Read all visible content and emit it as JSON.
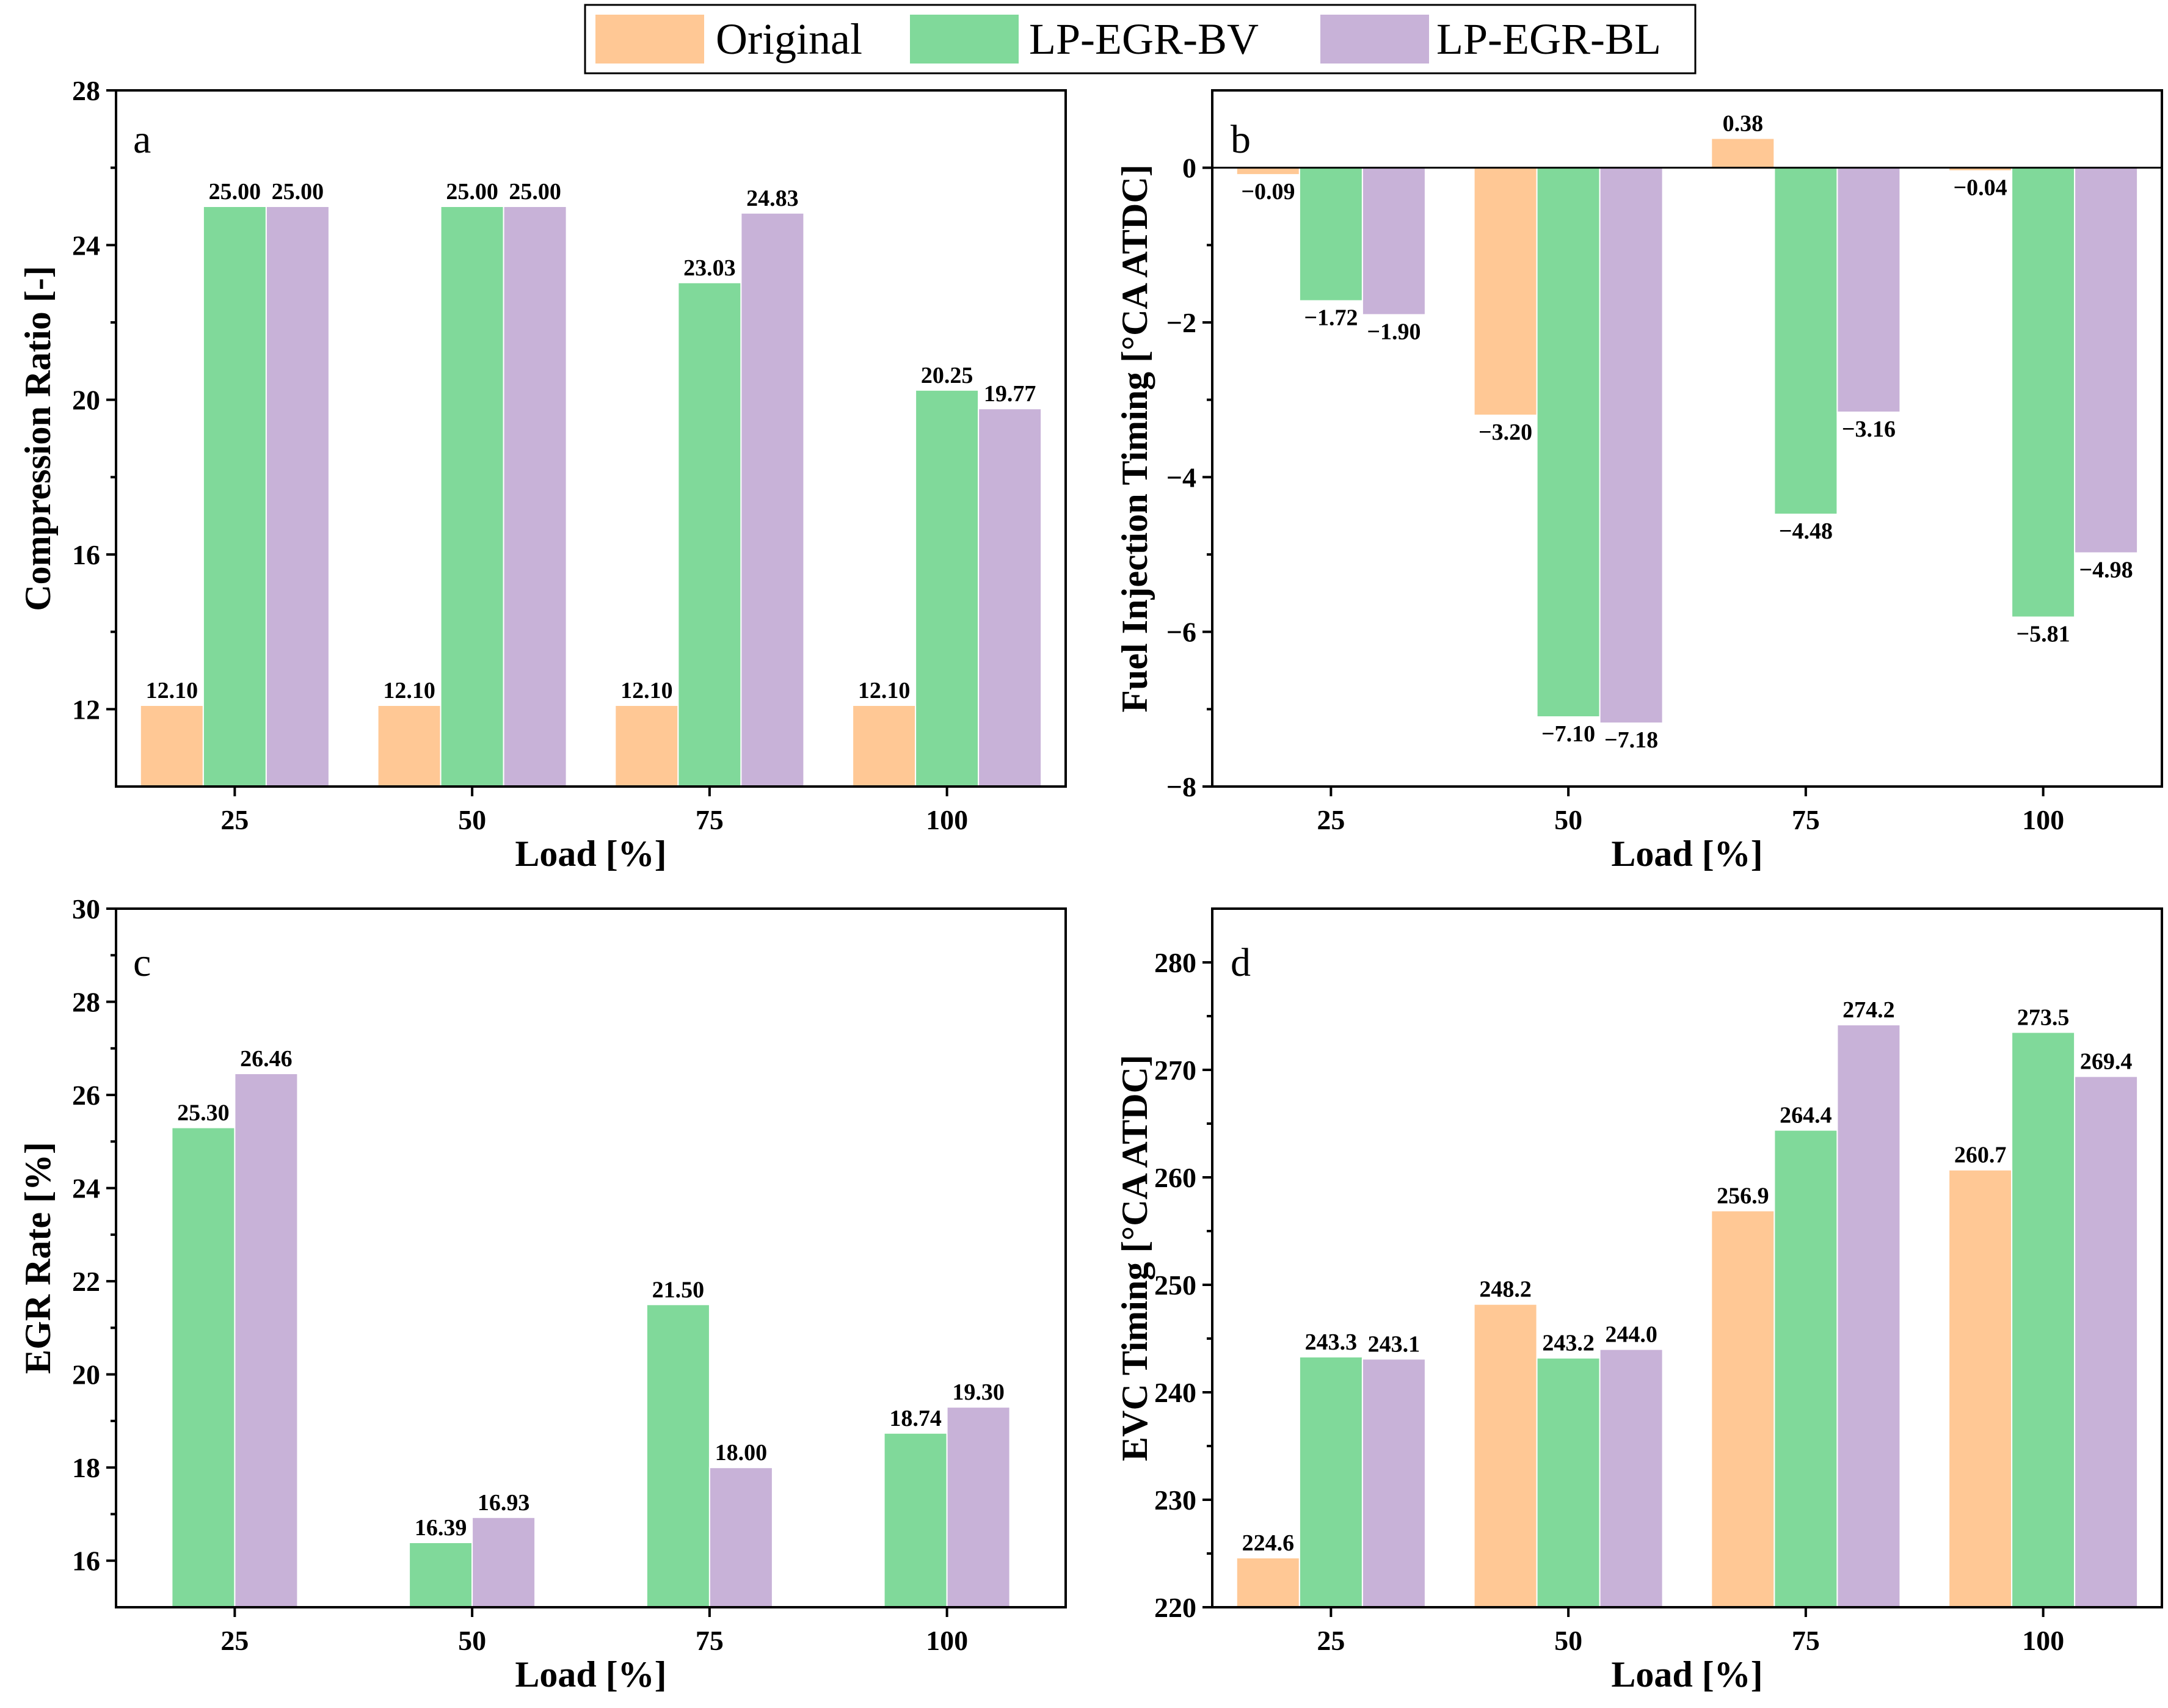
{
  "legend": [
    {
      "name": "Original",
      "color": "#FFC895"
    },
    {
      "name": "LP-EGR-BV",
      "color": "#80D99A"
    },
    {
      "name": "LP-EGR-BL",
      "color": "#C8B2D8"
    }
  ],
  "chart_data": [
    {
      "panel": "a",
      "type": "bar",
      "xlabel": "Load [%]",
      "ylabel": "Compression Ratio [-]",
      "categories": [
        "25",
        "50",
        "75",
        "100"
      ],
      "ylim": [
        10,
        28
      ],
      "yticks": [
        12,
        16,
        20,
        24,
        28
      ],
      "baseline": 10,
      "series": [
        {
          "name": "Original",
          "values": [
            12.1,
            12.1,
            12.1,
            12.1
          ],
          "labels": [
            "12.10",
            "12.10",
            "12.10",
            "12.10"
          ]
        },
        {
          "name": "LP-EGR-BV",
          "values": [
            25.0,
            25.0,
            23.03,
            20.25
          ],
          "labels": [
            "25.00",
            "25.00",
            "23.03",
            "20.25"
          ]
        },
        {
          "name": "LP-EGR-BL",
          "values": [
            25.0,
            25.0,
            24.83,
            19.77
          ],
          "labels": [
            "25.00",
            "25.00",
            "24.83",
            "19.77"
          ]
        }
      ]
    },
    {
      "panel": "b",
      "type": "bar",
      "xlabel": "Load [%]",
      "ylabel": "Fuel Injection Timing [°CA ATDC]",
      "categories": [
        "25",
        "50",
        "75",
        "100"
      ],
      "ylim": [
        -8,
        1
      ],
      "yticks": [
        -8,
        -6,
        -4,
        -2,
        0
      ],
      "ytick_labels": [
        "−8",
        "−6",
        "−4",
        "−2",
        "0"
      ],
      "baseline": 0,
      "series": [
        {
          "name": "Original",
          "values": [
            -0.09,
            -3.2,
            0.38,
            -0.04
          ],
          "labels": [
            "−0.09",
            "−3.20",
            "0.38",
            "−0.04"
          ]
        },
        {
          "name": "LP-EGR-BV",
          "values": [
            -1.72,
            -7.1,
            -4.48,
            -5.81
          ],
          "labels": [
            "−1.72",
            "−7.10",
            "−4.48",
            "−5.81"
          ]
        },
        {
          "name": "LP-EGR-BL",
          "values": [
            -1.9,
            -7.18,
            -3.16,
            -4.98
          ],
          "labels": [
            "−1.90",
            "−7.18",
            "−3.16",
            "−4.98"
          ]
        }
      ]
    },
    {
      "panel": "c",
      "type": "bar",
      "xlabel": "Load [%]",
      "ylabel": "EGR Rate [%]",
      "categories": [
        "25",
        "50",
        "75",
        "100"
      ],
      "ylim": [
        15,
        30
      ],
      "yticks": [
        16,
        18,
        20,
        22,
        24,
        26,
        28,
        30
      ],
      "baseline": 15,
      "series": [
        {
          "name": "LP-EGR-BV",
          "values": [
            25.3,
            16.39,
            21.5,
            18.74
          ],
          "labels": [
            "25.30",
            "16.39",
            "21.50",
            "18.74"
          ]
        },
        {
          "name": "LP-EGR-BL",
          "values": [
            26.46,
            16.93,
            18.0,
            19.3
          ],
          "labels": [
            "26.46",
            "16.93",
            "18.00",
            "19.30"
          ]
        }
      ]
    },
    {
      "panel": "d",
      "type": "bar",
      "xlabel": "Load [%]",
      "ylabel": "EVC Timing [°CA ATDC]",
      "categories": [
        "25",
        "50",
        "75",
        "100"
      ],
      "ylim": [
        220,
        285
      ],
      "yticks": [
        220,
        230,
        240,
        250,
        260,
        270,
        280
      ],
      "baseline": 220,
      "series": [
        {
          "name": "Original",
          "values": [
            224.6,
            248.2,
            256.9,
            260.7
          ],
          "labels": [
            "224.6",
            "248.2",
            "256.9",
            "260.7"
          ]
        },
        {
          "name": "LP-EGR-BV",
          "values": [
            243.3,
            243.2,
            264.4,
            273.5
          ],
          "labels": [
            "243.3",
            "243.2",
            "264.4",
            "273.5"
          ]
        },
        {
          "name": "LP-EGR-BL",
          "values": [
            243.1,
            244.0,
            274.2,
            269.4
          ],
          "labels": [
            "243.1",
            "244.0",
            "274.2",
            "269.4"
          ]
        }
      ]
    }
  ]
}
